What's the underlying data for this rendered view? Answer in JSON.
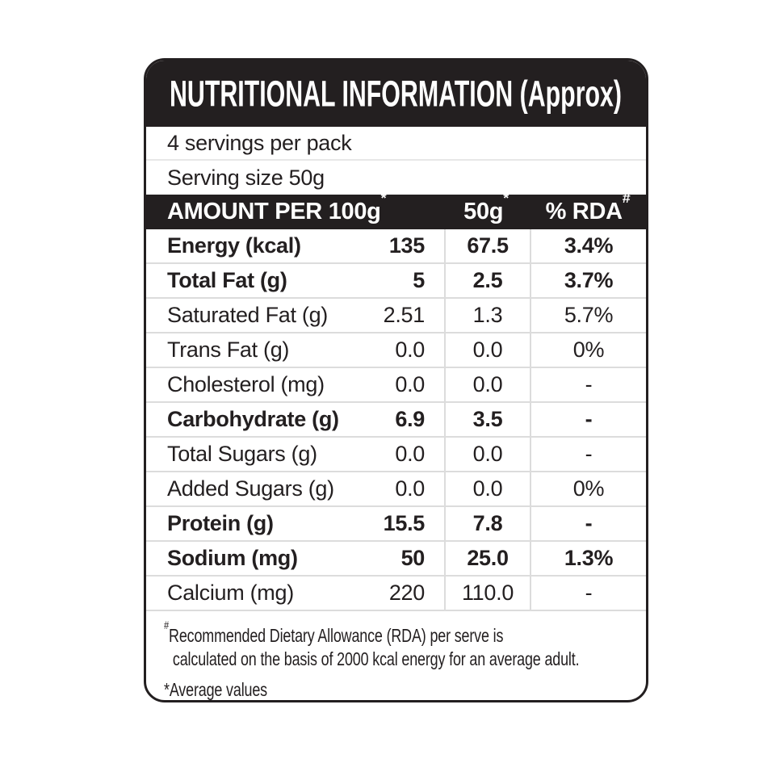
{
  "label": {
    "title": "NUTRITIONAL INFORMATION (Approx)",
    "servings_per_pack": "4 servings per pack",
    "serving_size": "Serving size 50g",
    "columns": {
      "amount_label": "AMOUNT PER 100g",
      "amount_sup": "*",
      "per_serve_label": "50g",
      "per_serve_sup": "*",
      "rda_label": "% RDA",
      "rda_sup": "#"
    },
    "rows": [
      {
        "name": "Energy (kcal)",
        "bold": true,
        "per100": "135",
        "per50": "67.5",
        "rda": "3.4%"
      },
      {
        "name": "Total Fat (g)",
        "bold": true,
        "per100": "5",
        "per50": "2.5",
        "rda": "3.7%"
      },
      {
        "name": "Saturated Fat (g)",
        "bold": false,
        "per100": "2.51",
        "per50": "1.3",
        "rda": "5.7%"
      },
      {
        "name": "Trans Fat (g)",
        "bold": false,
        "per100": "0.0",
        "per50": "0.0",
        "rda": "0%"
      },
      {
        "name": "Cholesterol (mg)",
        "bold": false,
        "per100": "0.0",
        "per50": "0.0",
        "rda": "-"
      },
      {
        "name": "Carbohydrate (g)",
        "bold": true,
        "per100": "6.9",
        "per50": "3.5",
        "rda": "-"
      },
      {
        "name": "Total Sugars (g)",
        "bold": false,
        "per100": "0.0",
        "per50": "0.0",
        "rda": "-"
      },
      {
        "name": "Added Sugars (g)",
        "bold": false,
        "per100": "0.0",
        "per50": "0.0",
        "rda": "0%"
      },
      {
        "name": "Protein (g)",
        "bold": true,
        "per100": "15.5",
        "per50": "7.8",
        "rda": "-"
      },
      {
        "name": "Sodium (mg)",
        "bold": true,
        "per100": "50",
        "per50": "25.0",
        "rda": "1.3%"
      },
      {
        "name": "Calcium (mg)",
        "bold": false,
        "per100": "220",
        "per50": "110.0",
        "rda": "-"
      }
    ],
    "footnotes": {
      "rda_sup": "#",
      "rda_line1": "Recommended Dietary Allowance (RDA) per serve is",
      "rda_line2": "calculated on the basis of 2000 kcal energy for an average adult.",
      "average_values": "*Average values"
    },
    "colors": {
      "ink": "#231f20",
      "divider": "#dcdcdc",
      "background": "#ffffff"
    }
  }
}
